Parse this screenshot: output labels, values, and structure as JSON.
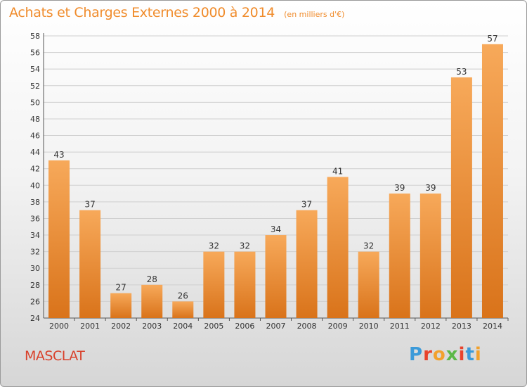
{
  "header": {
    "title": "Achats et Charges Externes 2000 à 2014",
    "subtitle": "(en milliers d'€)"
  },
  "footer": {
    "place": "MASCLAT",
    "logo_text": "Proxiti"
  },
  "colors": {
    "bar_light": "#f7a95a",
    "bar_dark": "#d9731a",
    "title": "#f08c2c",
    "place": "#d9402a",
    "grid": "#cfcfcf",
    "logo": [
      "#3b9ad9",
      "#e8432c",
      "#f2a12c",
      "#5cb847",
      "#e8432c",
      "#3b9ad9",
      "#f2a12c"
    ]
  },
  "chart_data": {
    "type": "bar",
    "title": "Achats et Charges Externes 2000 à 2014",
    "subtitle": "(en milliers d'€)",
    "categories": [
      "2000",
      "2001",
      "2002",
      "2003",
      "2004",
      "2005",
      "2006",
      "2007",
      "2008",
      "2009",
      "2010",
      "2011",
      "2012",
      "2013",
      "2014"
    ],
    "values": [
      43,
      37,
      27,
      28,
      26,
      32,
      32,
      34,
      37,
      41,
      32,
      39,
      39,
      53,
      57
    ],
    "ylim": [
      24,
      58
    ],
    "yticks": [
      24,
      26,
      28,
      30,
      32,
      34,
      36,
      38,
      40,
      42,
      44,
      46,
      48,
      50,
      52,
      54,
      56,
      58
    ],
    "grid": true,
    "data_labels": true
  }
}
